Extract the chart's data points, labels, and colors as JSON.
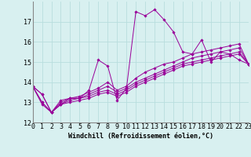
{
  "xlabel": "Windchill (Refroidissement éolien,°C)",
  "bg_color": "#d8f0f0",
  "line_color": "#990099",
  "grid_color": "#b8dede",
  "xlim": [
    0,
    23
  ],
  "ylim": [
    12,
    18
  ],
  "yticks": [
    12,
    13,
    14,
    15,
    16,
    17
  ],
  "xticks": [
    0,
    1,
    2,
    3,
    4,
    5,
    6,
    7,
    8,
    9,
    10,
    11,
    12,
    13,
    14,
    15,
    16,
    17,
    18,
    19,
    20,
    21,
    22,
    23
  ],
  "tick_fontsize": 6,
  "xlabel_fontsize": 6,
  "series": [
    [
      13.8,
      13.4,
      12.5,
      12.9,
      13.2,
      13.2,
      13.6,
      15.1,
      14.8,
      13.1,
      13.7,
      17.5,
      17.3,
      17.6,
      17.1,
      16.5,
      15.5,
      15.4,
      16.1,
      15.0,
      15.5,
      15.4,
      15.1,
      14.9
    ],
    [
      13.8,
      13.4,
      12.5,
      13.1,
      13.2,
      13.3,
      13.5,
      13.7,
      14.0,
      13.6,
      13.8,
      14.2,
      14.5,
      14.7,
      14.9,
      15.0,
      15.2,
      15.4,
      15.5,
      15.6,
      15.7,
      15.8,
      15.9,
      14.9
    ],
    [
      13.8,
      13.0,
      12.5,
      13.0,
      13.2,
      13.2,
      13.4,
      13.6,
      13.8,
      13.5,
      13.7,
      14.0,
      14.2,
      14.4,
      14.6,
      14.8,
      15.0,
      15.2,
      15.3,
      15.4,
      15.5,
      15.6,
      15.7,
      14.9
    ],
    [
      13.8,
      13.0,
      12.5,
      12.9,
      13.1,
      13.2,
      13.3,
      13.5,
      13.6,
      13.4,
      13.6,
      13.9,
      14.1,
      14.3,
      14.5,
      14.7,
      14.9,
      15.0,
      15.1,
      15.2,
      15.3,
      15.4,
      15.5,
      14.9
    ],
    [
      13.8,
      12.9,
      12.5,
      12.9,
      13.0,
      13.1,
      13.2,
      13.4,
      13.5,
      13.3,
      13.5,
      13.8,
      14.0,
      14.2,
      14.4,
      14.6,
      14.8,
      14.9,
      15.0,
      15.1,
      15.2,
      15.3,
      15.4,
      14.9
    ]
  ]
}
